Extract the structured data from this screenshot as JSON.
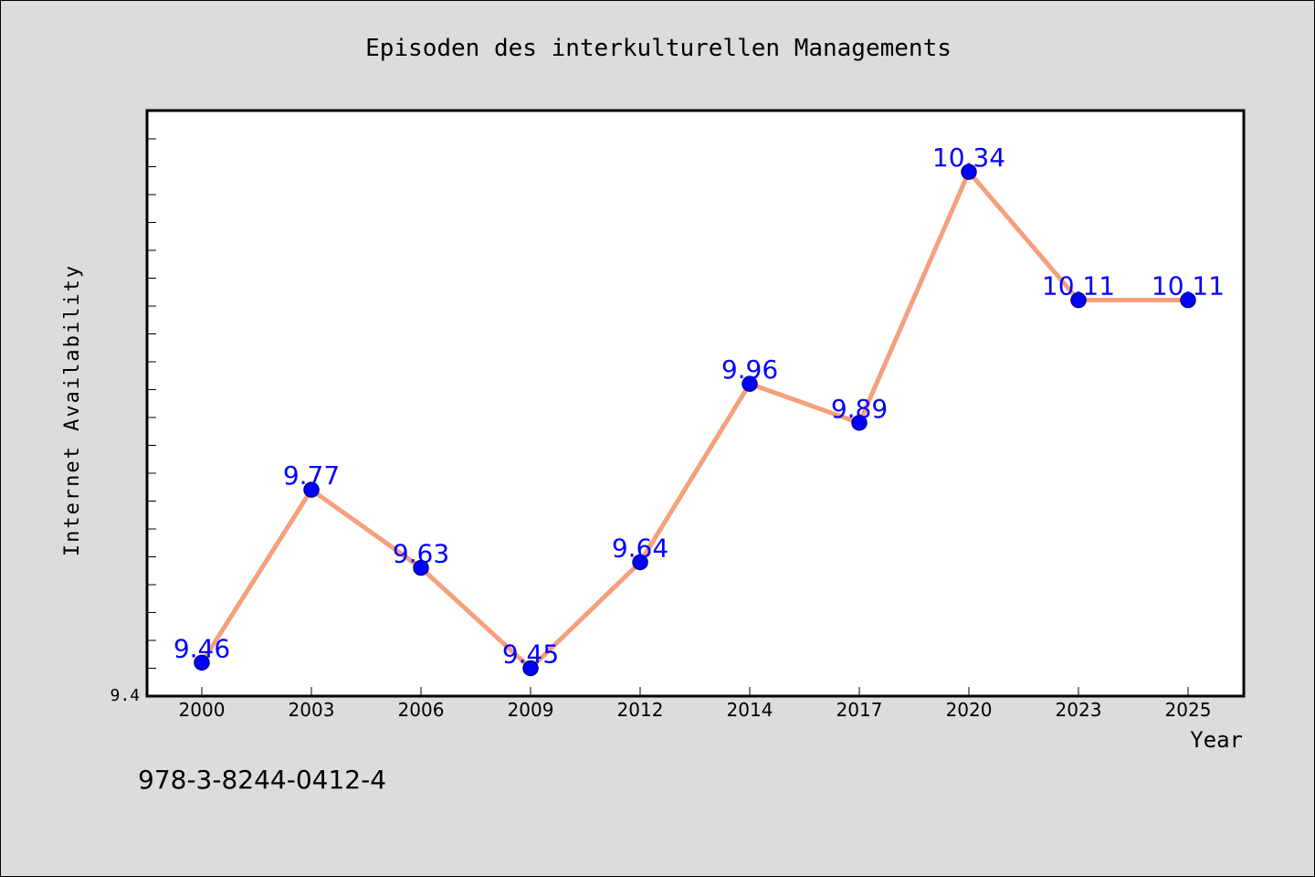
{
  "chart_data": {
    "type": "line",
    "title": "Episoden des interkulturellen Managements",
    "xlabel": "Year",
    "ylabel": "Internet Availability",
    "categories": [
      "2000",
      "2003",
      "2006",
      "2009",
      "2012",
      "2014",
      "2017",
      "2020",
      "2023",
      "2025"
    ],
    "series": [
      {
        "values": [
          9.46,
          9.77,
          9.63,
          9.45,
          9.64,
          9.96,
          9.89,
          10.34,
          10.11,
          10.11
        ],
        "data_labels": [
          "9.46",
          "9.77",
          "9.63",
          "9.45",
          "9.64",
          "9.96",
          "9.89",
          "10.34",
          "10.11",
          "10.11"
        ]
      }
    ],
    "ylim": [
      9.4,
      10.45
    ],
    "y_tick_labels": [
      "9.4"
    ],
    "grid": false,
    "legend": "none",
    "colors": {
      "line": "#f4a07c",
      "marker_fill": "#0000ff",
      "marker_stroke": "#00008b",
      "data_label": "#0000ff",
      "plot_background": "#ffffff",
      "figure_background": "#dcdcdc"
    }
  },
  "footer_text": "978-3-8244-0412-4"
}
